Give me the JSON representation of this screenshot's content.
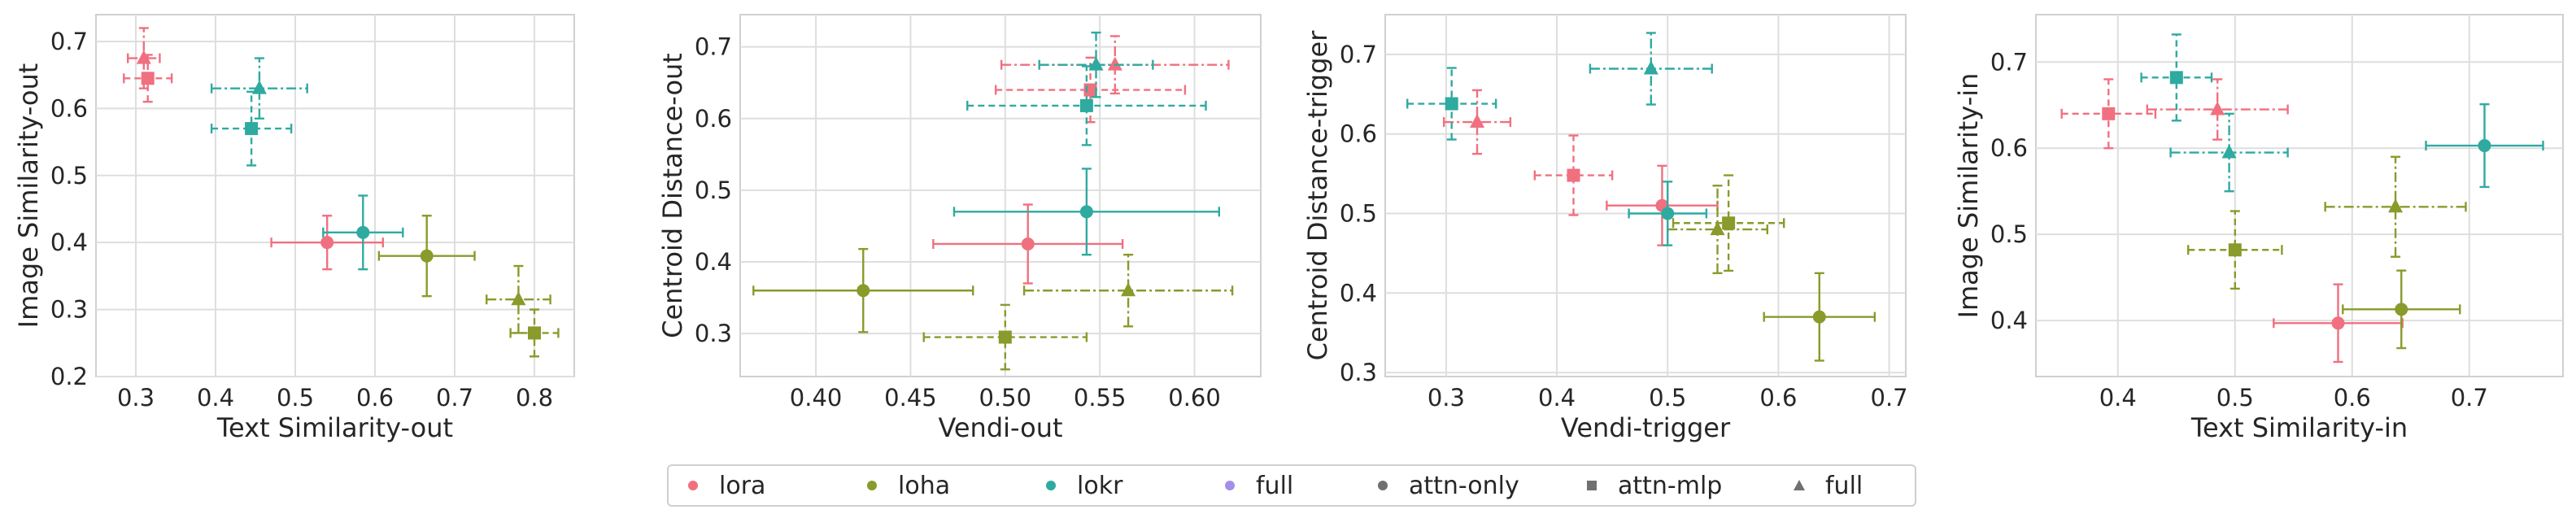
{
  "legend": [
    {
      "label": "lora",
      "color": "#f0707f",
      "marker": "circle"
    },
    {
      "label": "loha",
      "color": "#8a9a2b",
      "marker": "circle"
    },
    {
      "label": "lokr",
      "color": "#2faaa0",
      "marker": "circle"
    },
    {
      "label": "full",
      "color": "#a58ee8",
      "marker": "circle"
    },
    {
      "label": "attn-only",
      "color": "#707070",
      "marker": "circle"
    },
    {
      "label": "attn-mlp",
      "color": "#707070",
      "marker": "square"
    },
    {
      "label": "full",
      "color": "#707070",
      "marker": "triangle"
    }
  ],
  "chart_data": [
    {
      "type": "scatter",
      "xlabel": "Text Similarity-out",
      "ylabel": "Image Similarity-out",
      "xlim": [
        0.25,
        0.85
      ],
      "ylim": [
        0.2,
        0.74
      ],
      "xticks": [
        0.3,
        0.4,
        0.5,
        0.6,
        0.7,
        0.8
      ],
      "yticks": [
        0.2,
        0.3,
        0.4,
        0.5,
        0.6,
        0.7
      ],
      "grid": true,
      "points": [
        {
          "series": "lora",
          "marker": "circle",
          "x": 0.54,
          "y": 0.4,
          "xerr": 0.07,
          "yerr": 0.04
        },
        {
          "series": "lora",
          "marker": "square",
          "x": 0.315,
          "y": 0.645,
          "xerr": 0.03,
          "yerr": 0.035
        },
        {
          "series": "lora",
          "marker": "triangle",
          "x": 0.31,
          "y": 0.675,
          "xerr": 0.02,
          "yerr": 0.045
        },
        {
          "series": "loha",
          "marker": "circle",
          "x": 0.665,
          "y": 0.38,
          "xerr": 0.06,
          "yerr": 0.06
        },
        {
          "series": "loha",
          "marker": "square",
          "x": 0.8,
          "y": 0.265,
          "xerr": 0.03,
          "yerr": 0.035
        },
        {
          "series": "loha",
          "marker": "triangle",
          "x": 0.78,
          "y": 0.315,
          "xerr": 0.04,
          "yerr": 0.05
        },
        {
          "series": "lokr",
          "marker": "circle",
          "x": 0.585,
          "y": 0.415,
          "xerr": 0.05,
          "yerr": 0.055
        },
        {
          "series": "lokr",
          "marker": "square",
          "x": 0.445,
          "y": 0.57,
          "xerr": 0.05,
          "yerr": 0.055
        },
        {
          "series": "lokr",
          "marker": "triangle",
          "x": 0.455,
          "y": 0.63,
          "xerr": 0.06,
          "yerr": 0.045
        }
      ]
    },
    {
      "type": "scatter",
      "xlabel": "Vendi-out",
      "ylabel": "Centroid Distance-out",
      "xlim": [
        0.36,
        0.635
      ],
      "ylim": [
        0.24,
        0.745
      ],
      "xticks": [
        0.4,
        0.45,
        0.5,
        0.55,
        0.6
      ],
      "yticks": [
        0.3,
        0.4,
        0.5,
        0.6,
        0.7
      ],
      "grid": true,
      "points": [
        {
          "series": "lora",
          "marker": "circle",
          "x": 0.512,
          "y": 0.425,
          "xerr": 0.05,
          "yerr": 0.055
        },
        {
          "series": "lora",
          "marker": "square",
          "x": 0.545,
          "y": 0.64,
          "xerr": 0.05,
          "yerr": 0.045
        },
        {
          "series": "lora",
          "marker": "triangle",
          "x": 0.558,
          "y": 0.675,
          "xerr": 0.06,
          "yerr": 0.04
        },
        {
          "series": "loha",
          "marker": "circle",
          "x": 0.425,
          "y": 0.36,
          "xerr": 0.058,
          "yerr": 0.058
        },
        {
          "series": "loha",
          "marker": "square",
          "x": 0.5,
          "y": 0.295,
          "xerr": 0.043,
          "yerr": 0.045
        },
        {
          "series": "loha",
          "marker": "triangle",
          "x": 0.565,
          "y": 0.36,
          "xerr": 0.055,
          "yerr": 0.05
        },
        {
          "series": "lokr",
          "marker": "circle",
          "x": 0.543,
          "y": 0.47,
          "xerr": 0.07,
          "yerr": 0.06
        },
        {
          "series": "lokr",
          "marker": "square",
          "x": 0.543,
          "y": 0.618,
          "xerr": 0.063,
          "yerr": 0.055
        },
        {
          "series": "lokr",
          "marker": "triangle",
          "x": 0.548,
          "y": 0.675,
          "xerr": 0.03,
          "yerr": 0.045
        }
      ]
    },
    {
      "type": "scatter",
      "xlabel": "Vendi-trigger",
      "ylabel": "Centroid Distance-trigger",
      "xlim": [
        0.245,
        0.715
      ],
      "ylim": [
        0.295,
        0.75
      ],
      "xticks": [
        0.3,
        0.4,
        0.5,
        0.6,
        0.7
      ],
      "yticks": [
        0.3,
        0.4,
        0.5,
        0.6,
        0.7
      ],
      "grid": true,
      "points": [
        {
          "series": "lora",
          "marker": "circle",
          "x": 0.495,
          "y": 0.51,
          "xerr": 0.05,
          "yerr": 0.05
        },
        {
          "series": "lora",
          "marker": "square",
          "x": 0.415,
          "y": 0.548,
          "xerr": 0.035,
          "yerr": 0.05
        },
        {
          "series": "lora",
          "marker": "triangle",
          "x": 0.328,
          "y": 0.615,
          "xerr": 0.03,
          "yerr": 0.04
        },
        {
          "series": "loha",
          "marker": "circle",
          "x": 0.637,
          "y": 0.37,
          "xerr": 0.05,
          "yerr": 0.055
        },
        {
          "series": "loha",
          "marker": "square",
          "x": 0.555,
          "y": 0.488,
          "xerr": 0.05,
          "yerr": 0.06
        },
        {
          "series": "loha",
          "marker": "triangle",
          "x": 0.545,
          "y": 0.48,
          "xerr": 0.045,
          "yerr": 0.055
        },
        {
          "series": "lokr",
          "marker": "circle",
          "x": 0.5,
          "y": 0.5,
          "xerr": 0.035,
          "yerr": 0.04
        },
        {
          "series": "lokr",
          "marker": "square",
          "x": 0.305,
          "y": 0.638,
          "xerr": 0.04,
          "yerr": 0.045
        },
        {
          "series": "lokr",
          "marker": "triangle",
          "x": 0.485,
          "y": 0.682,
          "xerr": 0.055,
          "yerr": 0.045
        }
      ]
    },
    {
      "type": "scatter",
      "xlabel": "Text Similarity-in",
      "ylabel": "Image Similarity-in",
      "xlim": [
        0.33,
        0.78
      ],
      "ylim": [
        0.335,
        0.755
      ],
      "xticks": [
        0.4,
        0.5,
        0.6,
        0.7
      ],
      "yticks": [
        0.4,
        0.5,
        0.6,
        0.7
      ],
      "grid": true,
      "points": [
        {
          "series": "lora",
          "marker": "circle",
          "x": 0.588,
          "y": 0.397,
          "xerr": 0.055,
          "yerr": 0.045
        },
        {
          "series": "lora",
          "marker": "square",
          "x": 0.392,
          "y": 0.64,
          "xerr": 0.04,
          "yerr": 0.04
        },
        {
          "series": "lora",
          "marker": "triangle",
          "x": 0.485,
          "y": 0.645,
          "xerr": 0.06,
          "yerr": 0.035
        },
        {
          "series": "loha",
          "marker": "circle",
          "x": 0.642,
          "y": 0.413,
          "xerr": 0.05,
          "yerr": 0.045
        },
        {
          "series": "loha",
          "marker": "square",
          "x": 0.5,
          "y": 0.482,
          "xerr": 0.04,
          "yerr": 0.045
        },
        {
          "series": "loha",
          "marker": "triangle",
          "x": 0.637,
          "y": 0.532,
          "xerr": 0.06,
          "yerr": 0.058
        },
        {
          "series": "lokr",
          "marker": "circle",
          "x": 0.713,
          "y": 0.603,
          "xerr": 0.05,
          "yerr": 0.048
        },
        {
          "series": "lokr",
          "marker": "square",
          "x": 0.45,
          "y": 0.682,
          "xerr": 0.03,
          "yerr": 0.05
        },
        {
          "series": "lokr",
          "marker": "triangle",
          "x": 0.495,
          "y": 0.595,
          "xerr": 0.05,
          "yerr": 0.045
        }
      ]
    }
  ]
}
